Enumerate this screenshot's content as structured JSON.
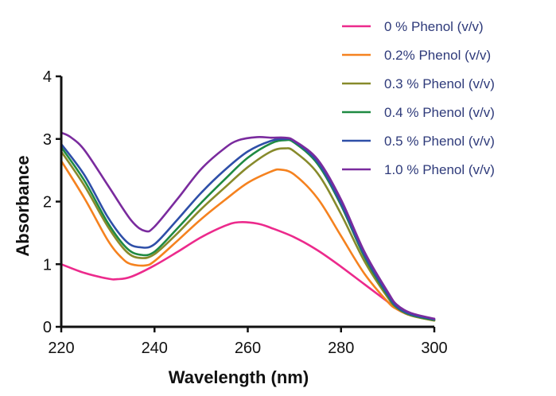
{
  "chart_data": {
    "type": "line",
    "xlabel": "Wavelength (nm)",
    "ylabel": "Absorbance",
    "xlim": [
      220,
      300
    ],
    "ylim": [
      0,
      4
    ],
    "x_ticks": [
      220,
      240,
      260,
      280,
      300
    ],
    "y_ticks": [
      0,
      1,
      2,
      3,
      4
    ],
    "grid": false,
    "legend_position": "top-right",
    "series": [
      {
        "name": "0 % Phenol (v/v)",
        "color": "#ec2a8c",
        "x": [
          220,
          225,
          230,
          232,
          235,
          240,
          245,
          250,
          255,
          258,
          262,
          265,
          270,
          275,
          280,
          285,
          290,
          292,
          295,
          300
        ],
        "y": [
          1.0,
          0.86,
          0.77,
          0.76,
          0.8,
          0.98,
          1.2,
          1.43,
          1.61,
          1.67,
          1.65,
          1.58,
          1.43,
          1.22,
          0.96,
          0.68,
          0.4,
          0.28,
          0.18,
          0.11
        ]
      },
      {
        "name": "0.2% Phenol (v/v)",
        "color": "#f5821f",
        "x": [
          220,
          225,
          230,
          233,
          235,
          238,
          240,
          245,
          250,
          255,
          260,
          265,
          267,
          270,
          275,
          280,
          285,
          290,
          292,
          295,
          300
        ],
        "y": [
          2.65,
          2.05,
          1.38,
          1.1,
          1.0,
          0.98,
          1.05,
          1.38,
          1.72,
          2.02,
          2.3,
          2.48,
          2.51,
          2.43,
          2.05,
          1.45,
          0.85,
          0.4,
          0.28,
          0.18,
          0.1
        ]
      },
      {
        "name": "0.3 % Phenol (v/v)",
        "color": "#878a2b",
        "x": [
          220,
          225,
          230,
          234,
          237,
          240,
          245,
          250,
          255,
          260,
          265,
          268,
          270,
          275,
          280,
          285,
          290,
          292,
          295,
          300
        ],
        "y": [
          2.8,
          2.25,
          1.6,
          1.2,
          1.1,
          1.16,
          1.5,
          1.88,
          2.22,
          2.55,
          2.8,
          2.85,
          2.8,
          2.45,
          1.8,
          1.05,
          0.47,
          0.3,
          0.18,
          0.1
        ]
      },
      {
        "name": "0.4 % Phenol (v/v)",
        "color": "#1f8a42",
        "x": [
          220,
          225,
          230,
          234,
          237,
          240,
          245,
          250,
          255,
          260,
          265,
          268,
          270,
          275,
          280,
          285,
          290,
          292,
          295,
          300
        ],
        "y": [
          2.87,
          2.33,
          1.66,
          1.26,
          1.15,
          1.2,
          1.58,
          1.98,
          2.35,
          2.7,
          2.93,
          2.98,
          2.94,
          2.6,
          1.94,
          1.12,
          0.5,
          0.31,
          0.19,
          0.11
        ]
      },
      {
        "name": "0.5 % Phenol (v/v)",
        "color": "#2e4fa8",
        "x": [
          220,
          225,
          230,
          234,
          237,
          240,
          245,
          250,
          255,
          260,
          265,
          268,
          270,
          275,
          280,
          285,
          290,
          292,
          295,
          300
        ],
        "y": [
          2.92,
          2.42,
          1.75,
          1.36,
          1.27,
          1.32,
          1.72,
          2.14,
          2.5,
          2.8,
          2.97,
          3.0,
          2.96,
          2.63,
          1.97,
          1.15,
          0.52,
          0.32,
          0.2,
          0.12
        ]
      },
      {
        "name": "1.0 % Phenol (v/v)",
        "color": "#7a2b9e",
        "x": [
          220,
          222,
          225,
          230,
          235,
          238,
          240,
          245,
          250,
          255,
          258,
          262,
          265,
          268,
          270,
          275,
          280,
          285,
          290,
          292,
          295,
          300
        ],
        "y": [
          3.1,
          3.03,
          2.82,
          2.26,
          1.7,
          1.53,
          1.6,
          2.05,
          2.52,
          2.85,
          2.98,
          3.03,
          3.02,
          3.02,
          2.97,
          2.67,
          2.03,
          1.2,
          0.56,
          0.35,
          0.22,
          0.13
        ]
      }
    ]
  }
}
